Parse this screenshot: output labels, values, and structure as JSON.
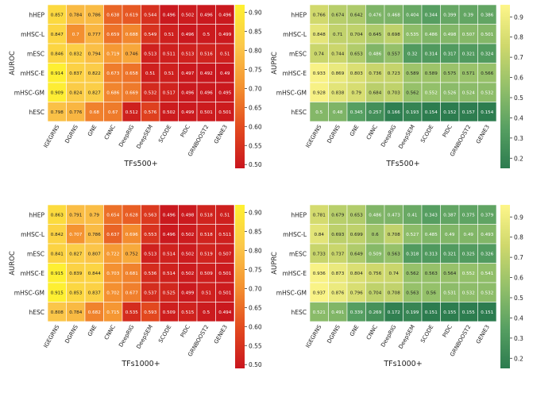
{
  "colors": {
    "auroc_scale": [
      "#c9161e",
      "#e34a1f",
      "#f49231",
      "#fbc84a",
      "#fef131"
    ],
    "auprc_scale": [
      "#2c7c4f",
      "#58a062",
      "#94c06a",
      "#cfd86c",
      "#fef68a"
    ],
    "grid_line": "#ffffff"
  },
  "chart_data": [
    {
      "type": "heatmap",
      "xlabel": "TFs500+",
      "ylabel": "AUROC",
      "rows": [
        "hHEP",
        "mHSC-L",
        "mESC",
        "mHSC-E",
        "mHSC-GM",
        "hESC"
      ],
      "cols": [
        "IGEGRNS",
        "DGRNS",
        "GNE",
        "CNNC",
        "DeepRIG",
        "DeepSEM",
        "SCODE",
        "PIDC",
        "GRNBOOST2",
        "GENIE3"
      ],
      "values": [
        [
          0.857,
          0.784,
          0.786,
          0.638,
          0.619,
          0.544,
          0.496,
          0.502,
          0.496,
          0.496
        ],
        [
          0.847,
          0.7,
          0.777,
          0.659,
          0.688,
          0.549,
          0.51,
          0.496,
          0.5,
          0.499
        ],
        [
          0.846,
          0.832,
          0.794,
          0.719,
          0.746,
          0.513,
          0.511,
          0.513,
          0.516,
          0.51
        ],
        [
          0.914,
          0.837,
          0.822,
          0.673,
          0.658,
          0.51,
          0.51,
          0.497,
          0.492,
          0.49
        ],
        [
          0.909,
          0.824,
          0.827,
          0.686,
          0.669,
          0.532,
          0.517,
          0.496,
          0.496,
          0.495
        ],
        [
          0.798,
          0.776,
          0.68,
          0.67,
          0.512,
          0.576,
          0.502,
          0.499,
          0.501,
          0.501
        ]
      ],
      "colorbar_ticks": [
        "0.90",
        "0.85",
        "0.80",
        "0.75",
        "0.70",
        "0.65",
        "0.60",
        "0.55",
        "0.50"
      ],
      "vmin": 0.49,
      "vmax": 0.92
    },
    {
      "type": "heatmap",
      "xlabel": "TFs500+",
      "ylabel": "AUPRC",
      "rows": [
        "hHEP",
        "mHSC-L",
        "mESC",
        "mHSC-E",
        "mHSC-GM",
        "hESC"
      ],
      "cols": [
        "IGEGRNS",
        "DGRNS",
        "GNE",
        "CNNC",
        "DeepRIG",
        "DeepSEM",
        "SCODE",
        "PIDC",
        "GRNBOOST2",
        "GENIE3"
      ],
      "values": [
        [
          0.766,
          0.674,
          0.642,
          0.476,
          0.468,
          0.404,
          0.344,
          0.399,
          0.39,
          0.386
        ],
        [
          0.848,
          0.71,
          0.704,
          0.645,
          0.698,
          0.535,
          0.486,
          0.498,
          0.507,
          0.501
        ],
        [
          0.74,
          0.744,
          0.653,
          0.486,
          0.557,
          0.32,
          0.314,
          0.317,
          0.321,
          0.324
        ],
        [
          0.933,
          0.869,
          0.803,
          0.736,
          0.723,
          0.589,
          0.589,
          0.575,
          0.571,
          0.566
        ],
        [
          0.928,
          0.838,
          0.79,
          0.684,
          0.703,
          0.562,
          0.552,
          0.526,
          0.524,
          0.532
        ],
        [
          0.5,
          0.48,
          0.345,
          0.257,
          0.166,
          0.193,
          0.154,
          0.152,
          0.157,
          0.154
        ]
      ],
      "colorbar_ticks": [
        "0.9",
        "0.8",
        "0.7",
        "0.6",
        "0.5",
        "0.4",
        "0.3",
        "0.2"
      ],
      "vmin": 0.15,
      "vmax": 0.96
    },
    {
      "type": "heatmap",
      "xlabel": "TFs1000+",
      "ylabel": "AUROC",
      "rows": [
        "hHEP",
        "mHSC-L",
        "mESC",
        "mHSC-E",
        "mHSC-GM",
        "hESC"
      ],
      "cols": [
        "IGEGRNS",
        "DGRNS",
        "GNE",
        "CNNC",
        "DeepRIG",
        "DeepSEM",
        "SCODE",
        "PIDC",
        "GRNBOOST2",
        "GENIE3"
      ],
      "values": [
        [
          0.863,
          0.791,
          0.79,
          0.654,
          0.628,
          0.563,
          0.496,
          0.498,
          0.518,
          0.51
        ],
        [
          0.842,
          0.707,
          0.786,
          0.637,
          0.696,
          0.553,
          0.496,
          0.502,
          0.518,
          0.511
        ],
        [
          0.841,
          0.827,
          0.807,
          0.722,
          0.752,
          0.513,
          0.514,
          0.502,
          0.519,
          0.507
        ],
        [
          0.915,
          0.839,
          0.844,
          0.703,
          0.681,
          0.536,
          0.514,
          0.502,
          0.509,
          0.501
        ],
        [
          0.915,
          0.853,
          0.837,
          0.702,
          0.677,
          0.537,
          0.525,
          0.499,
          0.51,
          0.501
        ],
        [
          0.808,
          0.784,
          0.682,
          0.715,
          0.535,
          0.593,
          0.509,
          0.515,
          0.5,
          0.494
        ]
      ],
      "colorbar_ticks": [
        "0.90",
        "0.85",
        "0.80",
        "0.75",
        "0.70",
        "0.65",
        "0.60",
        "0.55",
        "0.50"
      ],
      "vmin": 0.49,
      "vmax": 0.92
    },
    {
      "type": "heatmap",
      "xlabel": "TFs1000+",
      "ylabel": "AUPRC",
      "rows": [
        "hHEP",
        "mHSC-L",
        "mESC",
        "mHSC-E",
        "mHSC-GM",
        "hESC"
      ],
      "cols": [
        "IGEGRNS",
        "DGRNS",
        "GNE",
        "CNNC",
        "DeepRIG",
        "DeepSEM",
        "SCODE",
        "PIDC",
        "GRNBOOST2",
        "GENIE3"
      ],
      "values": [
        [
          0.781,
          0.679,
          0.653,
          0.486,
          0.473,
          0.41,
          0.343,
          0.387,
          0.375,
          0.379
        ],
        [
          0.84,
          0.693,
          0.699,
          0.6,
          0.708,
          0.527,
          0.485,
          0.49,
          0.49,
          0.493
        ],
        [
          0.733,
          0.737,
          0.649,
          0.509,
          0.563,
          0.318,
          0.313,
          0.321,
          0.325,
          0.326
        ],
        [
          0.936,
          0.873,
          0.804,
          0.756,
          0.74,
          0.562,
          0.563,
          0.564,
          0.552,
          0.541
        ],
        [
          0.937,
          0.876,
          0.796,
          0.704,
          0.708,
          0.563,
          0.56,
          0.531,
          0.532,
          0.532
        ],
        [
          0.521,
          0.491,
          0.339,
          0.269,
          0.172,
          0.199,
          0.151,
          0.155,
          0.155,
          0.151
        ]
      ],
      "colorbar_ticks": [
        "0.9",
        "0.8",
        "0.7",
        "0.6",
        "0.5",
        "0.4",
        "0.3",
        "0.2"
      ],
      "vmin": 0.15,
      "vmax": 0.96
    }
  ]
}
